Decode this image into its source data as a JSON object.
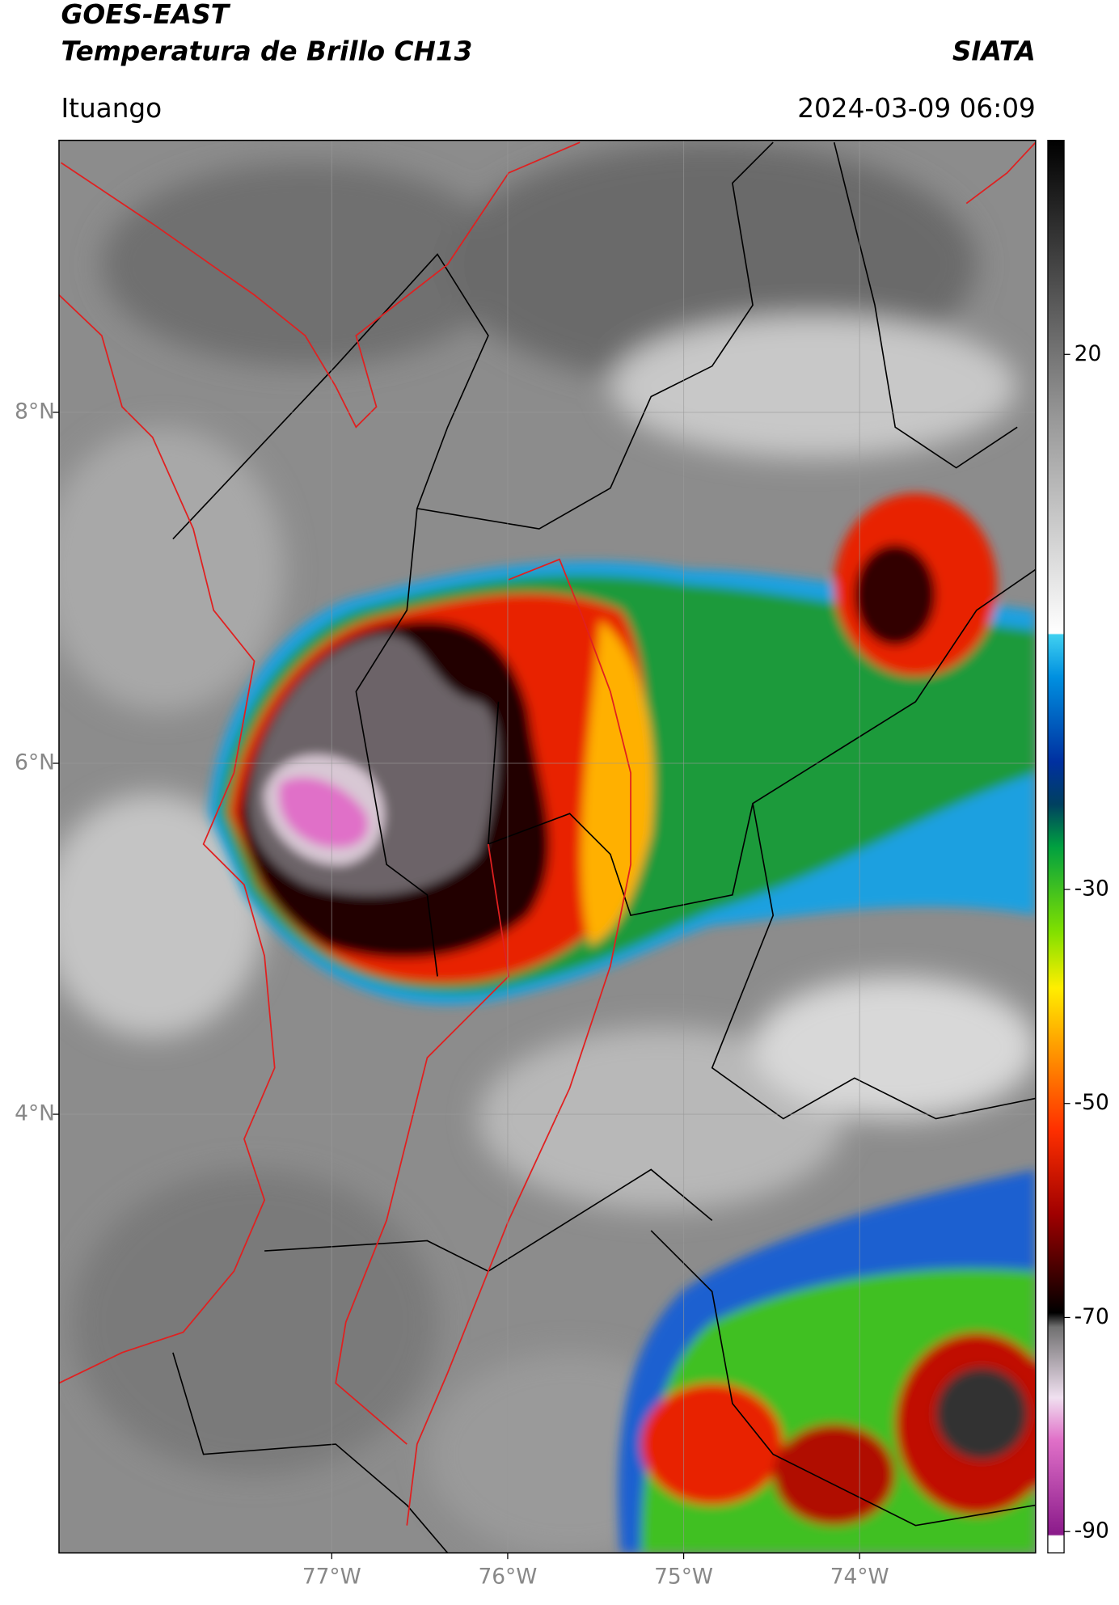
{
  "header": {
    "title": "GOES-EAST",
    "subtitle": "Temperatura de Brillo CH13",
    "org": "SIATA",
    "location": "Ituango",
    "datetime": "2024-03-09 06:09"
  },
  "map": {
    "xlim": [
      -78.55,
      -73.0
    ],
    "ylim": [
      1.5,
      9.55
    ],
    "xticks": [
      {
        "value": -77,
        "label": "77°W"
      },
      {
        "value": -76,
        "label": "76°W"
      },
      {
        "value": -75,
        "label": "75°W"
      },
      {
        "value": -74,
        "label": "74°W"
      }
    ],
    "yticks": [
      {
        "value": 8,
        "label": "8°N"
      },
      {
        "value": 6,
        "label": "6°N"
      },
      {
        "value": 4,
        "label": "4°N"
      }
    ],
    "grid": true
  },
  "colorbar": {
    "lim": [
      -92,
      40
    ],
    "ticks": [
      20,
      -30,
      -50,
      -70,
      -90
    ]
  }
}
